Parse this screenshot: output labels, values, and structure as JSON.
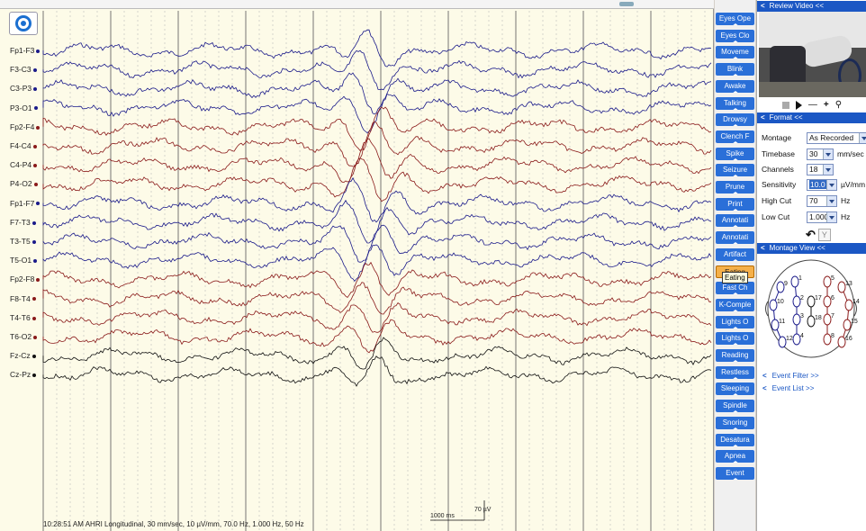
{
  "eeg": {
    "channels": [
      {
        "label": "Fp1-F3",
        "color": "#1a1a8a"
      },
      {
        "label": "F3-C3",
        "color": "#1a1a8a"
      },
      {
        "label": "C3-P3",
        "color": "#1a1a8a"
      },
      {
        "label": "P3-O1",
        "color": "#1a1a8a"
      },
      {
        "label": "Fp2-F4",
        "color": "#8a1a1a"
      },
      {
        "label": "F4-C4",
        "color": "#8a1a1a"
      },
      {
        "label": "C4-P4",
        "color": "#8a1a1a"
      },
      {
        "label": "P4-O2",
        "color": "#8a1a1a"
      },
      {
        "label": "Fp1-F7",
        "color": "#1a1a8a"
      },
      {
        "label": "F7-T3",
        "color": "#1a1a8a"
      },
      {
        "label": "T3-T5",
        "color": "#1a1a8a"
      },
      {
        "label": "T5-O1",
        "color": "#1a1a8a"
      },
      {
        "label": "Fp2-F8",
        "color": "#8a1a1a"
      },
      {
        "label": "F8-T4",
        "color": "#8a1a1a"
      },
      {
        "label": "T4-T6",
        "color": "#8a1a1a"
      },
      {
        "label": "T6-O2",
        "color": "#8a1a1a"
      },
      {
        "label": "Fz-Cz",
        "color": "#111111"
      },
      {
        "label": "Cz-Pz",
        "color": "#111111"
      }
    ],
    "status_line": "10:28:51 AM AHRI Longitudinal, 30 mm/sec, 10 µV/mm, 70.0 Hz, 1.000 Hz, 50 Hz",
    "scale_time": "1000 ms",
    "scale_amp": "70 µV"
  },
  "events": {
    "buttons": [
      "Eyes Ope",
      "Eyes Clo",
      "Moveme",
      "Blink",
      "Awake",
      "Talking",
      "Drowsy",
      "Clench F",
      "Spike",
      "Seizure",
      "Prune",
      "Print",
      "Annotati",
      "Annotati",
      "Artifact",
      "Eating",
      "Fast Ch",
      "K-Comple",
      "Lights O",
      "Lights O",
      "Reading",
      "Restless",
      "Sleeping",
      "Spindle",
      "Snoring",
      "Desatura",
      "Apnea",
      "Event"
    ],
    "active_index": 15,
    "tooltip": "Eating",
    "accent_color": "#2a6fd8",
    "active_color": "#f5b04a"
  },
  "review_video": {
    "header": "Review Video <<"
  },
  "format": {
    "header": "Format <<",
    "montage": {
      "label": "Montage",
      "value": "As Recorded"
    },
    "timebase": {
      "label": "Timebase",
      "value": "30",
      "unit": "mm/sec"
    },
    "channels": {
      "label": "Channels",
      "value": "18"
    },
    "sensitivity": {
      "label": "Sensitivity",
      "value": "10.0",
      "unit": "µV/mm"
    },
    "high_cut": {
      "label": "High Cut",
      "value": "70",
      "unit": "Hz"
    },
    "low_cut": {
      "label": "Low Cut",
      "value": "1.000",
      "unit": "Hz"
    }
  },
  "montage_view": {
    "header": "Montage View <<",
    "electrodes": [
      "1",
      "2",
      "3",
      "4",
      "5",
      "6",
      "7",
      "8",
      "9",
      "10",
      "11",
      "12",
      "13",
      "14",
      "15",
      "16",
      "17",
      "18"
    ]
  },
  "links": {
    "event_filter": "Event Filter >>",
    "event_list": "Event List >>"
  }
}
